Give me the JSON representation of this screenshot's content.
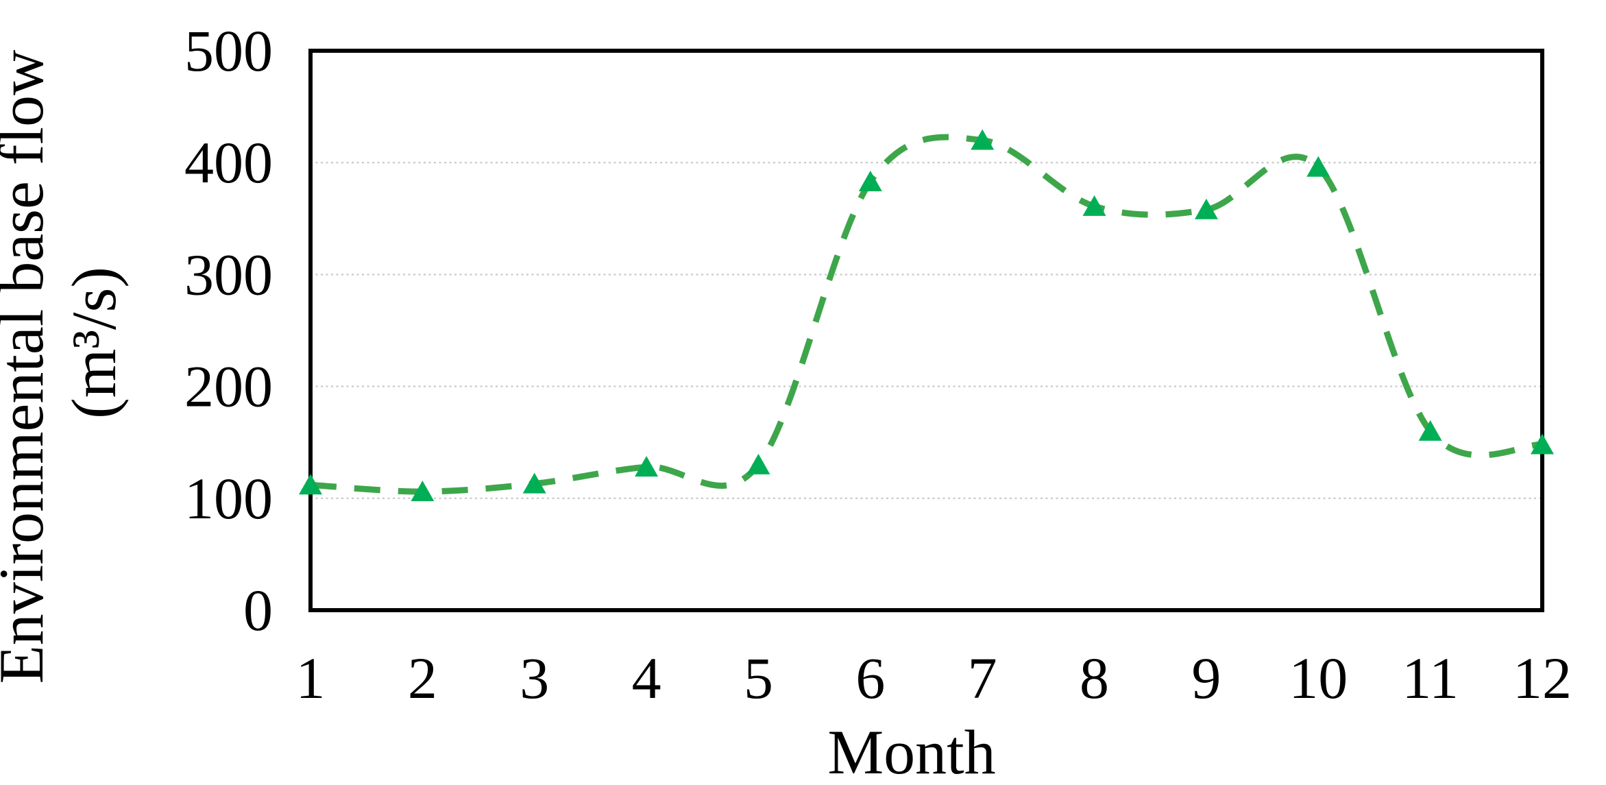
{
  "chart_data": {
    "type": "line",
    "title": "",
    "xlabel": "Month",
    "ylabel": "Environmental base flow (m³/s)",
    "ylabel_lines": [
      "Environmental base flow",
      "(m³/s)"
    ],
    "x": [
      1,
      2,
      3,
      4,
      5,
      6,
      7,
      8,
      9,
      10,
      11,
      12
    ],
    "x_tick_labels": [
      "1",
      "2",
      "3",
      "4",
      "5",
      "6",
      "7",
      "8",
      "9",
      "10",
      "11",
      "12"
    ],
    "series": [
      {
        "name": "Environmental base flow",
        "values": [
          112,
          106,
          113,
          128,
          130,
          383,
          420,
          361,
          358,
          396,
          160,
          148
        ],
        "line_style": "dashed",
        "smooth": true,
        "marker": "triangle-up"
      }
    ],
    "ylim": [
      0,
      500
    ],
    "xlim": [
      1,
      12
    ],
    "y_ticks": [
      0,
      100,
      200,
      300,
      400,
      500
    ],
    "grid": {
      "horizontal": true,
      "vertical": false,
      "style": "dotted"
    },
    "legend_position": "none",
    "colors": {
      "line": "#3EA64A",
      "marker": "#00AF55",
      "gridline": "#CBCBCB",
      "plot_border": "#000000",
      "text": "#000000",
      "background": "#FFFFFF"
    }
  }
}
